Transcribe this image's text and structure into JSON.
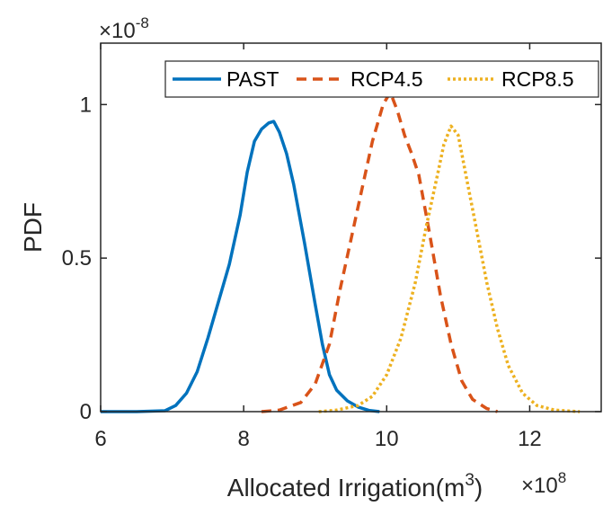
{
  "chart_data": {
    "type": "line",
    "xlabel": "Allocated Irrigation(m",
    "xlabel_superscript": "3",
    "xlabel_suffix": ")",
    "ylabel": "PDF",
    "x_multiplier_base": "×10",
    "x_multiplier_exp": "8",
    "y_multiplier_base": "×10",
    "y_multiplier_exp": "-8",
    "xlim": [
      6,
      13
    ],
    "ylim": [
      0,
      1.2
    ],
    "x_ticks": [
      6,
      8,
      10,
      12
    ],
    "x_tick_labels": [
      "6",
      "8",
      "10",
      "12"
    ],
    "y_ticks": [
      0,
      0.5,
      1
    ],
    "y_tick_labels": [
      "0",
      "0.5",
      "1"
    ],
    "grid": false,
    "legend_position": "top-right",
    "series": [
      {
        "name": "PAST",
        "color": "#0072BD",
        "style": "solid",
        "x": [
          6.0,
          6.5,
          6.9,
          7.05,
          7.2,
          7.35,
          7.5,
          7.65,
          7.8,
          7.95,
          8.05,
          8.15,
          8.25,
          8.35,
          8.42,
          8.5,
          8.6,
          8.7,
          8.85,
          9.0,
          9.1,
          9.2,
          9.3,
          9.45,
          9.6,
          9.75,
          9.9
        ],
        "y": [
          0.0,
          0.0,
          0.003,
          0.02,
          0.06,
          0.13,
          0.24,
          0.36,
          0.48,
          0.64,
          0.78,
          0.88,
          0.92,
          0.94,
          0.945,
          0.91,
          0.84,
          0.74,
          0.55,
          0.35,
          0.22,
          0.12,
          0.07,
          0.035,
          0.015,
          0.004,
          0.0
        ]
      },
      {
        "name": "RCP4.5",
        "color": "#D95319",
        "style": "dashed",
        "x": [
          8.25,
          8.5,
          8.8,
          9.0,
          9.2,
          9.35,
          9.5,
          9.65,
          9.8,
          9.95,
          10.05,
          10.15,
          10.25,
          10.35,
          10.45,
          10.6,
          10.75,
          10.9,
          11.05,
          11.2,
          11.4,
          11.55
        ],
        "y": [
          0.0,
          0.005,
          0.03,
          0.09,
          0.22,
          0.4,
          0.56,
          0.72,
          0.88,
          1.0,
          1.04,
          0.98,
          0.9,
          0.84,
          0.77,
          0.58,
          0.38,
          0.22,
          0.1,
          0.04,
          0.01,
          0.0
        ]
      },
      {
        "name": "RCP8.5",
        "color": "#EDB120",
        "style": "dotted",
        "x": [
          9.05,
          9.3,
          9.6,
          9.8,
          10.0,
          10.2,
          10.4,
          10.55,
          10.7,
          10.8,
          10.9,
          11.0,
          11.1,
          11.25,
          11.4,
          11.55,
          11.7,
          11.9,
          12.1,
          12.35,
          12.7
        ],
        "y": [
          0.0,
          0.005,
          0.02,
          0.05,
          0.12,
          0.24,
          0.42,
          0.6,
          0.76,
          0.87,
          0.93,
          0.9,
          0.78,
          0.6,
          0.42,
          0.27,
          0.15,
          0.06,
          0.02,
          0.005,
          0.0
        ]
      }
    ]
  }
}
